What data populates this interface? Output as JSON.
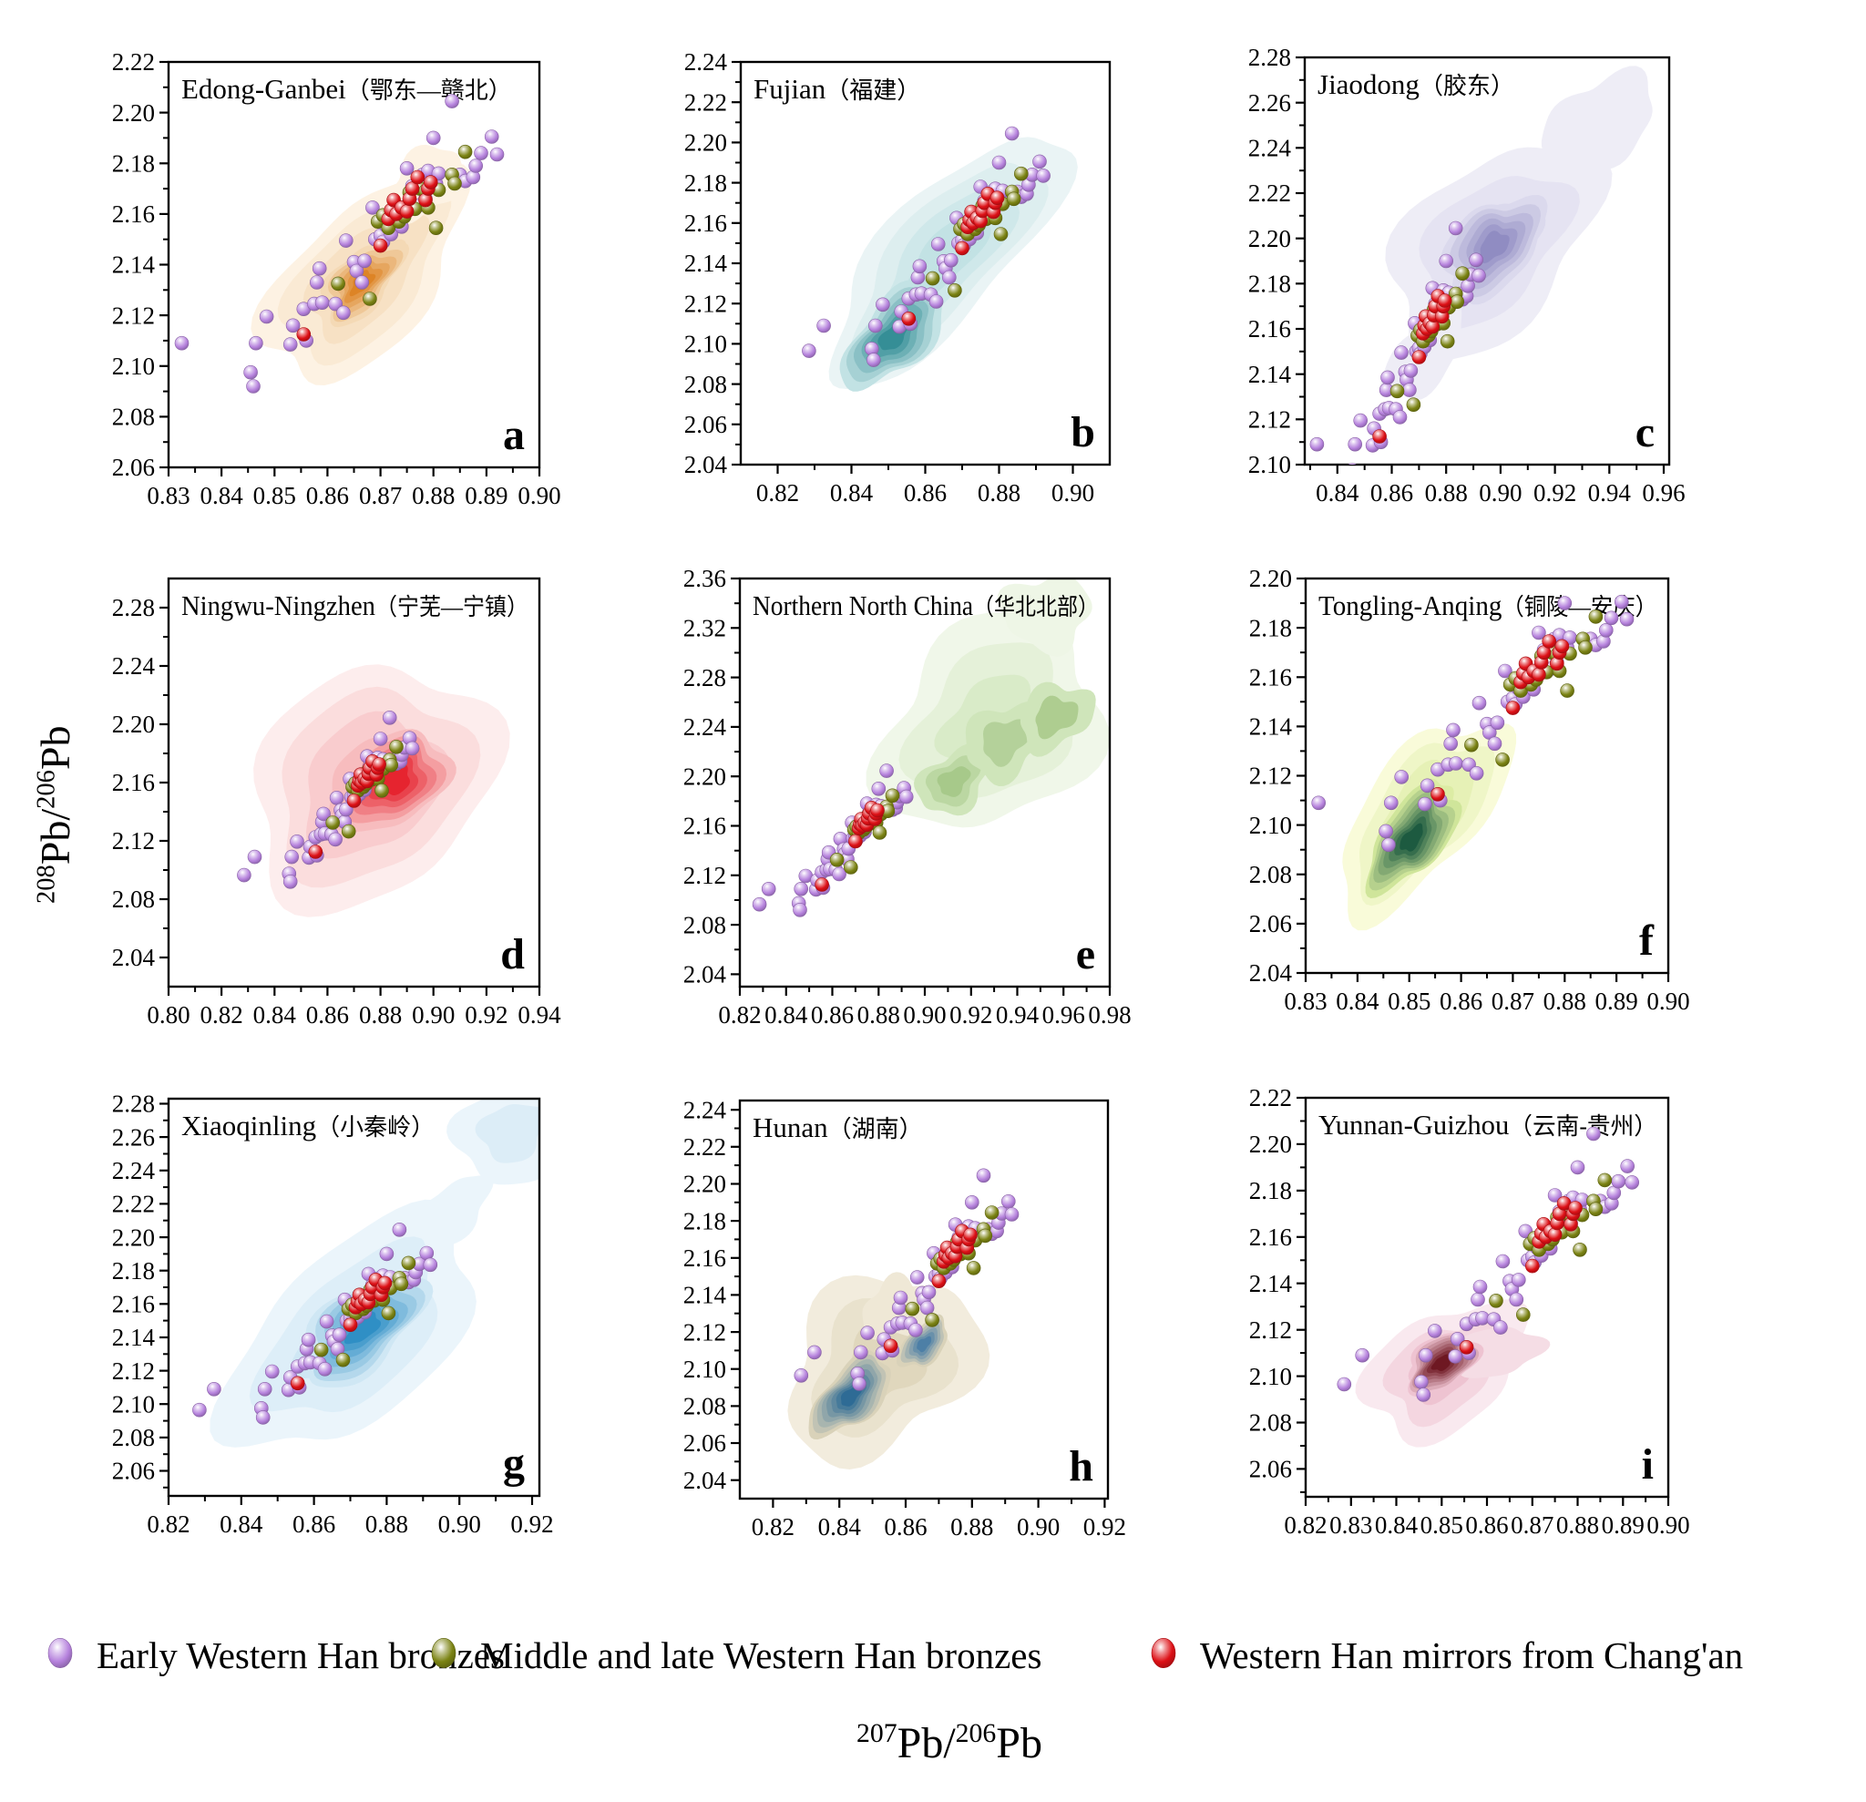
{
  "figure": {
    "ylabel": {
      "s1": "208",
      "b1": "Pb/",
      "s2": "206",
      "b2": "Pb"
    },
    "xlabel": {
      "s1": "207",
      "b1": "Pb/",
      "s2": "206",
      "b2": "Pb"
    }
  },
  "chart_data": {
    "type": "scatter",
    "xlabel": "207Pb/206Pb",
    "ylabel": "208Pb/206Pb",
    "legend_position": "bottom",
    "grid": false,
    "series": [
      {
        "name": "Early Western Han bronzes",
        "color": "#b682dd",
        "points": [
          [
            0.8285,
            2.0965
          ],
          [
            0.8325,
            2.109
          ],
          [
            0.8455,
            2.0975
          ],
          [
            0.846,
            2.092
          ],
          [
            0.8465,
            2.109
          ],
          [
            0.8485,
            2.1195
          ],
          [
            0.853,
            2.1085
          ],
          [
            0.8535,
            2.116
          ],
          [
            0.8555,
            2.1225
          ],
          [
            0.856,
            2.11
          ],
          [
            0.8575,
            2.1245
          ],
          [
            0.858,
            2.133
          ],
          [
            0.8585,
            2.1385
          ],
          [
            0.859,
            2.125
          ],
          [
            0.8615,
            2.1245
          ],
          [
            0.863,
            2.121
          ],
          [
            0.8635,
            2.1495
          ],
          [
            0.865,
            2.141
          ],
          [
            0.8655,
            2.1375
          ],
          [
            0.8665,
            2.133
          ],
          [
            0.867,
            2.1415
          ],
          [
            0.8685,
            2.1625
          ],
          [
            0.869,
            2.15
          ],
          [
            0.87,
            2.1515
          ],
          [
            0.8705,
            2.149
          ],
          [
            0.871,
            2.1555
          ],
          [
            0.872,
            2.152
          ],
          [
            0.8725,
            2.158
          ],
          [
            0.874,
            2.155
          ],
          [
            0.8745,
            2.1625
          ],
          [
            0.875,
            2.178
          ],
          [
            0.8755,
            2.1655
          ],
          [
            0.876,
            2.171
          ],
          [
            0.8775,
            2.1635
          ],
          [
            0.878,
            2.1755
          ],
          [
            0.8785,
            2.166
          ],
          [
            0.879,
            2.177
          ],
          [
            0.88,
            2.19
          ],
          [
            0.8805,
            2.172
          ],
          [
            0.881,
            2.176
          ],
          [
            0.8835,
            2.2045
          ],
          [
            0.885,
            2.1755
          ],
          [
            0.886,
            2.173
          ],
          [
            0.8875,
            2.1745
          ],
          [
            0.888,
            2.179
          ],
          [
            0.889,
            2.184
          ],
          [
            0.891,
            2.1905
          ],
          [
            0.892,
            2.1835
          ]
        ]
      },
      {
        "name": "Middle and late Western Han bronzes",
        "color": "#7b8313",
        "points": [
          [
            0.862,
            2.1325
          ],
          [
            0.868,
            2.1265
          ],
          [
            0.8695,
            2.157
          ],
          [
            0.8705,
            2.1595
          ],
          [
            0.8715,
            2.1545
          ],
          [
            0.8725,
            2.16
          ],
          [
            0.8735,
            2.157
          ],
          [
            0.8745,
            2.159
          ],
          [
            0.8755,
            2.1685
          ],
          [
            0.8765,
            2.162
          ],
          [
            0.8775,
            2.17
          ],
          [
            0.8785,
            2.169
          ],
          [
            0.879,
            2.1625
          ],
          [
            0.8805,
            2.1545
          ],
          [
            0.881,
            2.1695
          ],
          [
            0.8835,
            2.1755
          ],
          [
            0.884,
            2.172
          ],
          [
            0.886,
            2.1845
          ]
        ]
      },
      {
        "name": "Western Han mirrors from Chang'an",
        "color": "#dd1016",
        "points": [
          [
            0.8555,
            2.1125
          ],
          [
            0.87,
            2.1475
          ],
          [
            0.8715,
            2.158
          ],
          [
            0.872,
            2.1615
          ],
          [
            0.8725,
            2.1655
          ],
          [
            0.873,
            2.16
          ],
          [
            0.874,
            2.1625
          ],
          [
            0.875,
            2.161
          ],
          [
            0.8755,
            2.166
          ],
          [
            0.876,
            2.17
          ],
          [
            0.877,
            2.1745
          ],
          [
            0.8785,
            2.1655
          ],
          [
            0.879,
            2.17
          ],
          [
            0.8795,
            2.1725
          ]
        ]
      }
    ],
    "panels": [
      {
        "letter": "a",
        "title_en": "Edong-Ganbei",
        "title_cn": "（鄂东—赣北）",
        "xlim": [
          0.83,
          0.9
        ],
        "ylim": [
          2.06,
          2.22
        ],
        "xticks": [
          0.83,
          0.84,
          0.85,
          0.86,
          0.87,
          0.88,
          0.89,
          0.9
        ],
        "yticks": [
          2.06,
          2.08,
          2.1,
          2.12,
          2.14,
          2.16,
          2.18,
          2.2,
          2.22
        ],
        "kde": [
          {
            "cx": 0.867,
            "cy": 2.135,
            "rx": 0.33,
            "ry": 0.17,
            "rot": 43,
            "levels": 4,
            "c0": "#fdf2e3",
            "c1": "#f4d9b5",
            "w": 0.12,
            "seed": 1
          },
          {
            "cx": 0.8785,
            "cy": 2.172,
            "rx": 0.12,
            "ry": 0.075,
            "rot": 35,
            "levels": 1,
            "c0": "#fdf2e3",
            "c1": "#fdf2e3",
            "w": 0.15,
            "seed": 4
          },
          {
            "cx": 0.8665,
            "cy": 2.133,
            "rx": 0.13,
            "ry": 0.068,
            "rot": 43,
            "levels": 6,
            "c0": "#f4d9b5",
            "c1": "#dd8426",
            "w": 0.15,
            "seed": 2
          }
        ]
      },
      {
        "letter": "b",
        "title_en": "Fujian",
        "title_cn": "（福建）",
        "xlim": [
          0.81,
          0.91
        ],
        "ylim": [
          2.04,
          2.24
        ],
        "xticks": [
          0.82,
          0.84,
          0.86,
          0.88,
          0.9
        ],
        "yticks": [
          2.04,
          2.06,
          2.08,
          2.1,
          2.12,
          2.14,
          2.16,
          2.18,
          2.2,
          2.22,
          2.24
        ],
        "kde": [
          {
            "cx": 0.8655,
            "cy": 2.143,
            "rx": 0.42,
            "ry": 0.155,
            "rot": 44,
            "levels": 4,
            "c0": "#eaf4f5",
            "c1": "#c2e2e4",
            "w": 0.1,
            "seed": 3
          },
          {
            "cx": 0.8515,
            "cy": 2.104,
            "rx": 0.17,
            "ry": 0.085,
            "rot": 42,
            "levels": 6,
            "c0": "#c2e2e4",
            "c1": "#358e96",
            "w": 0.12,
            "seed": 5
          }
        ]
      },
      {
        "letter": "c",
        "title_en": "Jiaodong",
        "title_cn": "（胶东）",
        "xlim": [
          0.828,
          0.962
        ],
        "ylim": [
          2.1,
          2.28
        ],
        "xticks": [
          0.84,
          0.86,
          0.88,
          0.9,
          0.92,
          0.94,
          0.96
        ],
        "yticks": [
          2.1,
          2.12,
          2.14,
          2.16,
          2.18,
          2.2,
          2.22,
          2.24,
          2.26,
          2.28
        ],
        "kde": [
          {
            "cx": 0.897,
            "cy": 2.196,
            "rx": 0.33,
            "ry": 0.2,
            "rot": 40,
            "levels": 3,
            "c0": "#eeedf6",
            "c1": "#dbd9ed",
            "w": 0.12,
            "seed": 2
          },
          {
            "cx": 0.937,
            "cy": 2.252,
            "rx": 0.16,
            "ry": 0.1,
            "rot": 25,
            "levels": 1,
            "c0": "#eeedf6",
            "c1": "#eeedf6",
            "w": 0.14,
            "seed": 6
          },
          {
            "cx": 0.872,
            "cy": 2.148,
            "rx": 0.14,
            "ry": 0.07,
            "rot": 45,
            "levels": 1,
            "c0": "#eeedf6",
            "c1": "#eeedf6",
            "w": 0.12,
            "seed": 7
          },
          {
            "cx": 0.8975,
            "cy": 2.1965,
            "rx": 0.155,
            "ry": 0.1,
            "rot": 38,
            "levels": 6,
            "c0": "#dbd9ed",
            "c1": "#908cc2",
            "w": 0.12,
            "seed": 8
          }
        ]
      },
      {
        "letter": "d",
        "title_en": "Ningwu-Ningzhen",
        "title_cn": "（宁芜—宁镇）",
        "xlim": [
          0.8,
          0.94
        ],
        "ylim": [
          2.02,
          2.3
        ],
        "xticks": [
          0.8,
          0.82,
          0.84,
          0.86,
          0.88,
          0.9,
          0.92,
          0.94
        ],
        "yticks": [
          2.04,
          2.08,
          2.12,
          2.16,
          2.2,
          2.24,
          2.28
        ],
        "kde": [
          {
            "cx": 0.8765,
            "cy": 2.158,
            "rx": 0.35,
            "ry": 0.27,
            "rot": 33,
            "levels": 4,
            "c0": "#fdeded",
            "c1": "#f7bcbe",
            "w": 0.1,
            "seed": 9
          },
          {
            "cx": 0.8855,
            "cy": 2.161,
            "rx": 0.155,
            "ry": 0.105,
            "rot": 33,
            "levels": 6,
            "c0": "#f7bcbe",
            "c1": "#e6242f",
            "w": 0.12,
            "seed": 10
          }
        ]
      },
      {
        "letter": "e",
        "title_en": "Northern North China",
        "title_cn": "（华北北部）",
        "xlim": [
          0.82,
          0.98
        ],
        "ylim": [
          2.03,
          2.36
        ],
        "xticks": [
          0.82,
          0.84,
          0.86,
          0.88,
          0.9,
          0.92,
          0.94,
          0.96,
          0.98
        ],
        "yticks": [
          2.04,
          2.08,
          2.12,
          2.16,
          2.2,
          2.24,
          2.28,
          2.32,
          2.36
        ],
        "kde": [
          {
            "cx": 0.9285,
            "cy": 2.242,
            "rx": 0.315,
            "ry": 0.24,
            "rot": 33,
            "levels": 3,
            "c0": "#f0f7e9",
            "c1": "#d9ebc8",
            "w": 0.13,
            "seed": 11
          },
          {
            "cx": 0.9525,
            "cy": 2.3325,
            "rx": 0.12,
            "ry": 0.09,
            "rot": 0,
            "levels": 1,
            "c0": "#eef6e6",
            "c1": "#eef6e6",
            "w": 0.15,
            "seed": 12
          },
          {
            "cx": 0.9125,
            "cy": 2.196,
            "rx": 0.105,
            "ry": 0.07,
            "rot": 33,
            "levels": 3,
            "c0": "#cfe5ba",
            "c1": "#a7c98a",
            "w": 0.15,
            "seed": 13
          },
          {
            "cx": 0.9345,
            "cy": 2.229,
            "rx": 0.115,
            "ry": 0.085,
            "rot": 30,
            "levels": 2,
            "c0": "#cfe5ba",
            "c1": "#b4d19a",
            "w": 0.15,
            "seed": 14
          },
          {
            "cx": 0.9565,
            "cy": 2.2485,
            "rx": 0.105,
            "ry": 0.075,
            "rot": 25,
            "levels": 2,
            "c0": "#cfe5ba",
            "c1": "#aecd90",
            "w": 0.15,
            "seed": 15
          }
        ]
      },
      {
        "letter": "f",
        "title_en": "Tongling-Anqing",
        "title_cn": "（铜陵—安庆）",
        "xlim": [
          0.83,
          0.9
        ],
        "ylim": [
          2.04,
          2.2
        ],
        "xticks": [
          0.83,
          0.84,
          0.85,
          0.86,
          0.87,
          0.88,
          0.89,
          0.9
        ],
        "yticks": [
          2.04,
          2.06,
          2.08,
          2.1,
          2.12,
          2.14,
          2.16,
          2.18,
          2.2
        ],
        "kde": [
          {
            "cx": 0.8525,
            "cy": 2.104,
            "rx": 0.31,
            "ry": 0.145,
            "rot": 47,
            "levels": 4,
            "c0": "#f9fbd9",
            "c1": "#dceca4",
            "w": 0.12,
            "seed": 16
          },
          {
            "cx": 0.8505,
            "cy": 2.0945,
            "rx": 0.16,
            "ry": 0.082,
            "rot": 47,
            "levels": 8,
            "c0": "#cfe59a",
            "c1": "#1d5a40",
            "w": 0.13,
            "seed": 17
          }
        ]
      },
      {
        "letter": "g",
        "title_en": "Xiaoqinling",
        "title_cn": "（小秦岭）",
        "xlim": [
          0.82,
          0.922
        ],
        "ylim": [
          2.045,
          2.283
        ],
        "xticks": [
          0.82,
          0.84,
          0.86,
          0.88,
          0.9,
          0.92
        ],
        "yticks": [
          2.06,
          2.08,
          2.1,
          2.12,
          2.14,
          2.16,
          2.18,
          2.2,
          2.22,
          2.24,
          2.26,
          2.28
        ],
        "kde": [
          {
            "cx": 0.8705,
            "cy": 2.142,
            "rx": 0.4,
            "ry": 0.21,
            "rot": 39,
            "levels": 3,
            "c0": "#ebf5fb",
            "c1": "#cfe7f4",
            "w": 0.1,
            "seed": 18
          },
          {
            "cx": 0.9145,
            "cy": 2.263,
            "rx": 0.155,
            "ry": 0.125,
            "rot": 20,
            "levels": 2,
            "c0": "#ebf5fb",
            "c1": "#dcedf7",
            "w": 0.12,
            "seed": 19
          },
          {
            "cx": 0.898,
            "cy": 2.215,
            "rx": 0.12,
            "ry": 0.065,
            "rot": 40,
            "levels": 1,
            "c0": "#ebf5fb",
            "c1": "#ebf5fb",
            "w": 0.12,
            "seed": 20
          },
          {
            "cx": 0.8735,
            "cy": 2.1455,
            "rx": 0.195,
            "ry": 0.1,
            "rot": 39,
            "levels": 7,
            "c0": "#cfe7f4",
            "c1": "#2f8fc5",
            "w": 0.12,
            "seed": 21
          }
        ]
      },
      {
        "letter": "h",
        "title_en": "Hunan",
        "title_cn": "（湖南）",
        "xlim": [
          0.81,
          0.921
        ],
        "ylim": [
          2.03,
          2.245
        ],
        "xticks": [
          0.82,
          0.84,
          0.86,
          0.88,
          0.9,
          0.92
        ],
        "yticks": [
          2.04,
          2.06,
          2.08,
          2.1,
          2.12,
          2.14,
          2.16,
          2.18,
          2.2,
          2.22,
          2.24
        ],
        "kde": [
          {
            "cx": 0.8525,
            "cy": 2.102,
            "rx": 0.28,
            "ry": 0.205,
            "rot": 33,
            "levels": 3,
            "c0": "#f2ecdd",
            "c1": "#e0d7bd",
            "w": 0.14,
            "seed": 22
          },
          {
            "cx": 0.857,
            "cy": 2.132,
            "rx": 0.09,
            "ry": 0.075,
            "rot": 20,
            "levels": 1,
            "c0": "#efe8d6",
            "c1": "#efe8d6",
            "w": 0.15,
            "seed": 23
          },
          {
            "cx": 0.8435,
            "cy": 2.0855,
            "rx": 0.135,
            "ry": 0.068,
            "rot": 41,
            "levels": 8,
            "c0": "#d9d2b9",
            "c1": "#2e6b95",
            "w": 0.12,
            "seed": 24
          },
          {
            "cx": 0.8655,
            "cy": 2.1135,
            "rx": 0.08,
            "ry": 0.046,
            "rot": 41,
            "levels": 6,
            "c0": "#d9d2b9",
            "c1": "#4d7fa6",
            "w": 0.12,
            "seed": 25
          }
        ]
      },
      {
        "letter": "i",
        "title_en": "Yunnan-Guizhou",
        "title_cn": "（云南-贵州）",
        "xlim": [
          0.82,
          0.9
        ],
        "ylim": [
          2.048,
          2.22
        ],
        "xticks": [
          0.82,
          0.83,
          0.84,
          0.85,
          0.86,
          0.87,
          0.88,
          0.89,
          0.9
        ],
        "yticks": [
          2.06,
          2.08,
          2.1,
          2.12,
          2.14,
          2.16,
          2.18,
          2.2,
          2.22
        ],
        "kde": [
          {
            "cx": 0.8505,
            "cy": 2.1025,
            "rx": 0.235,
            "ry": 0.145,
            "rot": 28,
            "levels": 3,
            "c0": "#f9e9ef",
            "c1": "#eec3d1",
            "w": 0.13,
            "seed": 26
          },
          {
            "cx": 0.8625,
            "cy": 2.1105,
            "rx": 0.12,
            "ry": 0.06,
            "rot": 10,
            "levels": 1,
            "c0": "#f5dde5",
            "c1": "#f5dde5",
            "w": 0.13,
            "seed": 27
          },
          {
            "cx": 0.85,
            "cy": 2.1055,
            "rx": 0.105,
            "ry": 0.065,
            "rot": 30,
            "levels": 8,
            "c0": "#eec3d1",
            "c1": "#6e1822",
            "w": 0.13,
            "seed": 28
          }
        ]
      }
    ]
  }
}
